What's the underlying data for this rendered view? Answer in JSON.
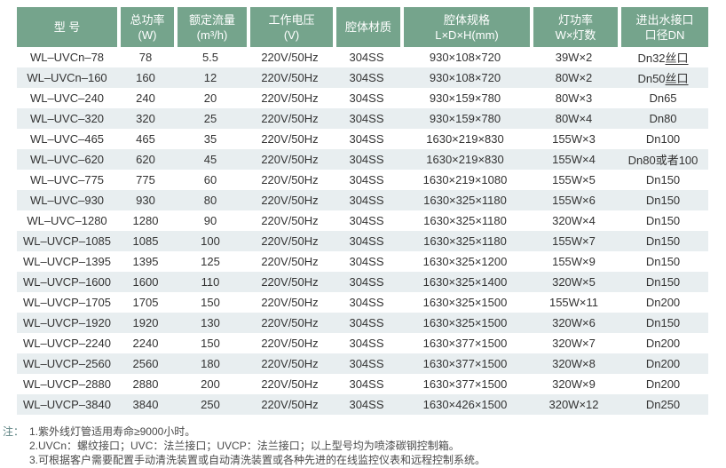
{
  "table": {
    "headers": [
      {
        "line1": "型 号",
        "line2": ""
      },
      {
        "line1": "总功率",
        "line2": "(W)"
      },
      {
        "line1": "额定流量",
        "line2": "(m³/h)"
      },
      {
        "line1": "工作电压",
        "line2": "(V)"
      },
      {
        "line1": "腔体材质",
        "line2": ""
      },
      {
        "line1": "腔体规格",
        "line2": "L×D×H(mm)"
      },
      {
        "line1": "灯功率",
        "line2": "W×灯数"
      },
      {
        "line1": "进出水接口",
        "line2": "口径DN"
      }
    ],
    "rows": [
      {
        "model": "WL–UVCn–78",
        "power_w": "78",
        "flow": "5.5",
        "voltage": "220V/50Hz",
        "material": "304SS",
        "spec": "930×108×720",
        "lamp": "39W×2",
        "dn": "Dn32",
        "dn_suffix": "丝口"
      },
      {
        "model": "WL–UVCn–160",
        "power_w": "160",
        "flow": "12",
        "voltage": "220V/50Hz",
        "material": "304SS",
        "spec": "930×108×720",
        "lamp": "80W×2",
        "dn": "Dn50",
        "dn_suffix": "丝口"
      },
      {
        "model": "WL–UVC–240",
        "power_w": "240",
        "flow": "20",
        "voltage": "220V/50Hz",
        "material": "304SS",
        "spec": "930×159×780",
        "lamp": "80W×3",
        "dn": "Dn65",
        "dn_suffix": ""
      },
      {
        "model": "WL–UVC–320",
        "power_w": "320",
        "flow": "25",
        "voltage": "220V/50Hz",
        "material": "304SS",
        "spec": "930×159×780",
        "lamp": "80W×4",
        "dn": "Dn80",
        "dn_suffix": ""
      },
      {
        "model": "WL–UVC–465",
        "power_w": "465",
        "flow": "35",
        "voltage": "220V/50Hz",
        "material": "304SS",
        "spec": "1630×219×830",
        "lamp": "155W×3",
        "dn": "Dn100",
        "dn_suffix": ""
      },
      {
        "model": "WL–UVC–620",
        "power_w": "620",
        "flow": "45",
        "voltage": "220V/50Hz",
        "material": "304SS",
        "spec": "1630×219×830",
        "lamp": "155W×4",
        "dn": "Dn80或者100",
        "dn_suffix": ""
      },
      {
        "model": "WL–UVC–775",
        "power_w": "775",
        "flow": "60",
        "voltage": "220V/50Hz",
        "material": "304SS",
        "spec": "1630×219×1080",
        "lamp": "155W×5",
        "dn": "Dn150",
        "dn_suffix": ""
      },
      {
        "model": "WL–UVC–930",
        "power_w": "930",
        "flow": "80",
        "voltage": "220V/50Hz",
        "material": "304SS",
        "spec": "1630×325×1180",
        "lamp": "155W×6",
        "dn": "Dn150",
        "dn_suffix": ""
      },
      {
        "model": "WL–UVC–1280",
        "power_w": "1280",
        "flow": "90",
        "voltage": "220V/50Hz",
        "material": "304SS",
        "spec": "1630×325×1180",
        "lamp": "320W×4",
        "dn": "Dn150",
        "dn_suffix": ""
      },
      {
        "model": "WL–UVCP–1085",
        "power_w": "1085",
        "flow": "100",
        "voltage": "220V/50Hz",
        "material": "304SS",
        "spec": "1630×325×1180",
        "lamp": "155W×7",
        "dn": "Dn150",
        "dn_suffix": ""
      },
      {
        "model": "WL–UVCP–1395",
        "power_w": "1395",
        "flow": "125",
        "voltage": "220V/50Hz",
        "material": "304SS",
        "spec": "1630×325×1200",
        "lamp": "155W×9",
        "dn": "Dn150",
        "dn_suffix": ""
      },
      {
        "model": "WL–UVCP–1600",
        "power_w": "1600",
        "flow": "110",
        "voltage": "220V/50Hz",
        "material": "304SS",
        "spec": "1630×325×1400",
        "lamp": "320W×5",
        "dn": "Dn150",
        "dn_suffix": ""
      },
      {
        "model": "WL–UVCP–1705",
        "power_w": "1705",
        "flow": "150",
        "voltage": "220V/50Hz",
        "material": "304SS",
        "spec": "1630×325×1500",
        "lamp": "155W×11",
        "dn": "Dn200",
        "dn_suffix": ""
      },
      {
        "model": "WL–UVCP–1920",
        "power_w": "1920",
        "flow": "130",
        "voltage": "220V/50Hz",
        "material": "304SS",
        "spec": "1630×325×1500",
        "lamp": "320W×6",
        "dn": "Dn150",
        "dn_suffix": ""
      },
      {
        "model": "WL–UVCP–2240",
        "power_w": "2240",
        "flow": "150",
        "voltage": "220V/50Hz",
        "material": "304SS",
        "spec": "1630×377×1500",
        "lamp": "320W×7",
        "dn": "Dn200",
        "dn_suffix": ""
      },
      {
        "model": "WL–UVCP–2560",
        "power_w": "2560",
        "flow": "180",
        "voltage": "220V/50Hz",
        "material": "304SS",
        "spec": "1630×377×1500",
        "lamp": "320W×8",
        "dn": "Dn200",
        "dn_suffix": ""
      },
      {
        "model": "WL–UVCP–2880",
        "power_w": "2880",
        "flow": "200",
        "voltage": "220V/50Hz",
        "material": "304SS",
        "spec": "1630×377×1500",
        "lamp": "320W×9",
        "dn": "Dn200",
        "dn_suffix": ""
      },
      {
        "model": "WL–UVCP–3840",
        "power_w": "3840",
        "flow": "250",
        "voltage": "220V/50Hz",
        "material": "304SS",
        "spec": "1630×426×1500",
        "lamp": "320W×12",
        "dn": "Dn250",
        "dn_suffix": ""
      }
    ]
  },
  "notes": {
    "label": "注：",
    "items": [
      "1.紫外线灯管适用寿命≥9000小时。",
      "2.UVCn：螺纹接口；UVC：法兰接口；UVCP：法兰接口；以上型号均为喷漆碳钢控制箱。",
      "3.可根据客户需要配置手动清洗装置或自动清洗装置或各种先进的在线监控仪表和远程控制系统。"
    ]
  },
  "colors": {
    "header_bg": "#75a48c",
    "header_text": "#ffffff",
    "stripe_bg": "#e8eef0",
    "body_text": "#333333"
  }
}
